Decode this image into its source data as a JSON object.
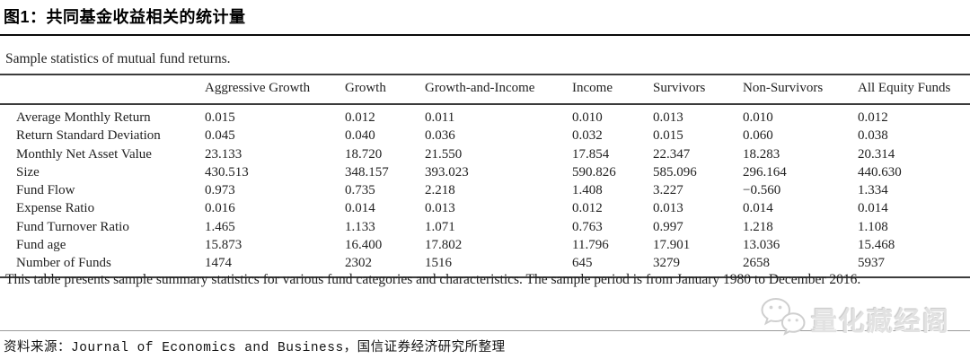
{
  "header": {
    "title": "图1：共同基金收益相关的统计量"
  },
  "table": {
    "caption": "Sample statistics of mutual fund returns.",
    "columns": [
      "Aggressive Growth",
      "Growth",
      "Growth-and-Income",
      "Income",
      "Survivors",
      "Non-Survivors",
      "All Equity Funds"
    ],
    "rows": [
      {
        "label": "Average Monthly Return",
        "values": [
          "0.015",
          "0.012",
          "0.011",
          "0.010",
          "0.013",
          "0.010",
          "0.012"
        ]
      },
      {
        "label": "Return Standard Deviation",
        "values": [
          "0.045",
          "0.040",
          "0.036",
          "0.032",
          "0.015",
          "0.060",
          "0.038"
        ]
      },
      {
        "label": "Monthly Net Asset Value",
        "values": [
          "23.133",
          "18.720",
          "21.550",
          "17.854",
          "22.347",
          "18.283",
          "20.314"
        ]
      },
      {
        "label": "Size",
        "values": [
          "430.513",
          "348.157",
          "393.023",
          "590.826",
          "585.096",
          "296.164",
          "440.630"
        ]
      },
      {
        "label": "Fund Flow",
        "values": [
          "0.973",
          "0.735",
          "2.218",
          "1.408",
          "3.227",
          "−0.560",
          "1.334"
        ]
      },
      {
        "label": "Expense Ratio",
        "values": [
          "0.016",
          "0.014",
          "0.013",
          "0.012",
          "0.013",
          "0.014",
          "0.014"
        ]
      },
      {
        "label": "Fund Turnover Ratio",
        "values": [
          "1.465",
          "1.133",
          "1.071",
          "0.763",
          "0.997",
          "1.218",
          "1.108"
        ]
      },
      {
        "label": "Fund age",
        "values": [
          "15.873",
          "16.400",
          "17.802",
          "11.796",
          "17.901",
          "13.036",
          "15.468"
        ]
      },
      {
        "label": "Number of Funds",
        "values": [
          "1474",
          "2302",
          "1516",
          "645",
          "3279",
          "2658",
          "5937"
        ]
      }
    ],
    "note": "This table presents sample summary statistics for various fund categories and characteristics. The sample period is from January 1980 to December 2016."
  },
  "watermark": {
    "icon": "wechat-icon",
    "label": "量化藏经阁"
  },
  "footer": {
    "source": "资料来源：Journal of Economics and Business，国信证券经济研究所整理"
  },
  "colors": {
    "background": "#ffffff",
    "text": "#222222",
    "title_text": "#000000",
    "rule_heavy": "#3c3c3c",
    "rule_light": "#9b9b9b",
    "watermark": "#e2e2e2"
  }
}
